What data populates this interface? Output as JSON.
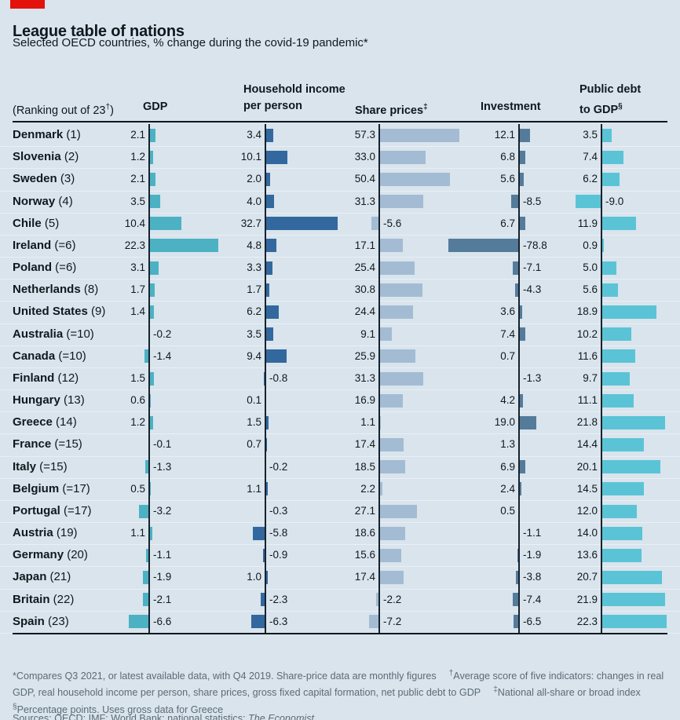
{
  "brand": {
    "red_color": "#e3120b"
  },
  "header": {
    "title": "League table of nations",
    "subtitle": "Selected OECD countries, % change during the covid-19 pandemic*"
  },
  "columns": {
    "ranking_pre": "(Ranking out of 23",
    "ranking_sup": "†",
    "ranking_post": ")"
  },
  "chart_data": {
    "type": "bar",
    "orientation": "horizontal",
    "title": "League table of nations",
    "subtitle": "Selected OECD countries, % change during the covid-19 pandemic*",
    "metrics": [
      {
        "id": "gdp",
        "label": "GDP",
        "sup": "",
        "color": "#4db1c4"
      },
      {
        "id": "household_income",
        "label": "Household income per person",
        "sup": "",
        "color": "#33689e"
      },
      {
        "id": "share_prices",
        "label": "Share prices",
        "sup": "‡",
        "color": "#a3bcd3"
      },
      {
        "id": "investment",
        "label": "Investment",
        "sup": "",
        "color": "#557b9b"
      },
      {
        "id": "public_debt",
        "label": "Public debt to GDP",
        "sup": "§",
        "color": "#5ac4d6"
      }
    ],
    "countries": [
      {
        "name": "Denmark",
        "rank": "(1)",
        "values": [
          "2.1",
          "3.4",
          "57.3",
          "12.1",
          "3.5"
        ]
      },
      {
        "name": "Slovenia",
        "rank": "(2)",
        "values": [
          "1.2",
          "10.1",
          "33.0",
          "6.8",
          "7.4"
        ]
      },
      {
        "name": "Sweden",
        "rank": "(3)",
        "values": [
          "2.1",
          "2.0",
          "50.4",
          "5.6",
          "6.2"
        ]
      },
      {
        "name": "Norway",
        "rank": "(4)",
        "values": [
          "3.5",
          "4.0",
          "31.3",
          "-8.5",
          "-9.0"
        ]
      },
      {
        "name": "Chile",
        "rank": "(5)",
        "values": [
          "10.4",
          "32.7",
          "-5.6",
          "6.7",
          "11.9"
        ]
      },
      {
        "name": "Ireland",
        "rank": "(=6)",
        "values": [
          "22.3",
          "4.8",
          "17.1",
          "-78.8",
          "0.9"
        ]
      },
      {
        "name": "Poland",
        "rank": "(=6)",
        "values": [
          "3.1",
          "3.3",
          "25.4",
          "-7.1",
          "5.0"
        ]
      },
      {
        "name": "Netherlands",
        "rank": "(8)",
        "values": [
          "1.7",
          "1.7",
          "30.8",
          "-4.3",
          "5.6"
        ]
      },
      {
        "name": "United States",
        "rank": "(9)",
        "values": [
          "1.4",
          "6.2",
          "24.4",
          "3.6",
          "18.9"
        ]
      },
      {
        "name": "Australia",
        "rank": "(=10)",
        "values": [
          "-0.2",
          "3.5",
          "9.1",
          "7.4",
          "10.2"
        ]
      },
      {
        "name": "Canada",
        "rank": "(=10)",
        "values": [
          "-1.4",
          "9.4",
          "25.9",
          "0.7",
          "11.6"
        ]
      },
      {
        "name": "Finland",
        "rank": "(12)",
        "values": [
          "1.5",
          "-0.8",
          "31.3",
          "-1.3",
          "9.7"
        ]
      },
      {
        "name": "Hungary",
        "rank": "(13)",
        "values": [
          "0.6",
          "0.1",
          "16.9",
          "4.2",
          "11.1"
        ]
      },
      {
        "name": "Greece",
        "rank": "(14)",
        "values": [
          "1.2",
          "1.5",
          "1.1",
          "19.0",
          "21.8"
        ]
      },
      {
        "name": "France",
        "rank": "(=15)",
        "values": [
          "-0.1",
          "0.7",
          "17.4",
          "1.3",
          "14.4"
        ]
      },
      {
        "name": "Italy",
        "rank": "(=15)",
        "values": [
          "-1.3",
          "-0.2",
          "18.5",
          "6.9",
          "20.1"
        ]
      },
      {
        "name": "Belgium",
        "rank": "(=17)",
        "values": [
          "0.5",
          "1.1",
          "2.2",
          "2.4",
          "14.5"
        ]
      },
      {
        "name": "Portugal",
        "rank": "(=17)",
        "values": [
          "-3.2",
          "-0.3",
          "27.1",
          "0.5",
          "12.0"
        ]
      },
      {
        "name": "Austria",
        "rank": "(19)",
        "values": [
          "1.1",
          "-5.8",
          "18.6",
          "-1.1",
          "14.0"
        ]
      },
      {
        "name": "Germany",
        "rank": "(20)",
        "values": [
          "-1.1",
          "-0.9",
          "15.6",
          "-1.9",
          "13.6"
        ]
      },
      {
        "name": "Japan",
        "rank": "(21)",
        "values": [
          "-1.9",
          "1.0",
          "17.4",
          "-3.8",
          "20.7"
        ]
      },
      {
        "name": "Britain",
        "rank": "(22)",
        "values": [
          "-2.1",
          "-2.3",
          "-2.2",
          "-7.4",
          "21.9"
        ]
      },
      {
        "name": "Spain",
        "rank": "(23)",
        "values": [
          "-6.6",
          "-6.3",
          "-7.2",
          "-6.5",
          "22.3"
        ]
      }
    ]
  },
  "footnotes": {
    "compares": "*Compares Q3 2021, or latest available data, with Q4 2019. Share-price data are monthly figures",
    "avg_sup": "†",
    "avg_text": "Average score of five indicators: changes in real GDP, real household income per person, share prices, gross fixed capital formation, net public debt to GDP",
    "national_sup": "‡",
    "national_text": "National all-share or broad index",
    "pct_sup": "§",
    "pct_text": "Percentage points. Uses gross data for Greece"
  },
  "sources": {
    "prefix": "Sources: OECD; IMF; World Bank; national statistics; ",
    "italic": "The Economist"
  }
}
